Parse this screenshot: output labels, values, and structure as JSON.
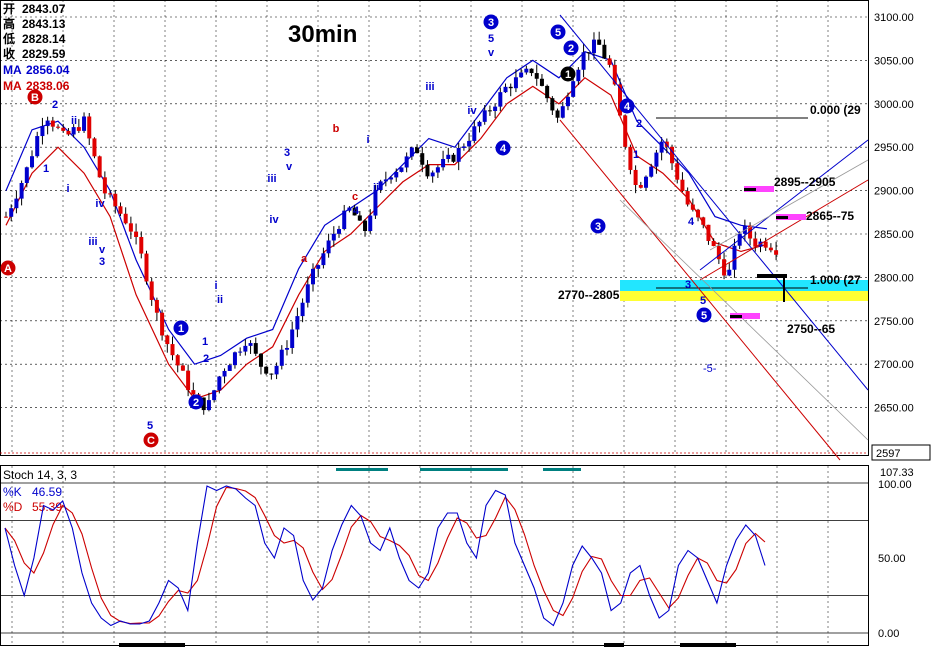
{
  "chart_data": [
    {
      "type": "candlestick",
      "title": "30min",
      "ohlc": {
        "labels": [
          "开",
          "高",
          "低",
          "收"
        ],
        "values": [
          "2843.07",
          "2843.13",
          "2828.14",
          "2829.59"
        ]
      },
      "ma": [
        {
          "name": "MA",
          "value": "2856.04",
          "color": "#0000cc"
        },
        {
          "name": "MA",
          "value": "2838.06",
          "color": "#cc0000"
        }
      ],
      "ylim": [
        2597,
        3115
      ],
      "y_ticks": [
        "3100.00",
        "3050.00",
        "3000.00",
        "2950.00",
        "2900.00",
        "2850.00",
        "2800.00",
        "2750.00",
        "2700.00",
        "2650.00"
      ],
      "last_value_label": "2597",
      "close_path": [
        [
          0,
          2870
        ],
        [
          6,
          2920
        ],
        [
          12,
          2990
        ],
        [
          18,
          2960
        ],
        [
          24,
          2980
        ],
        [
          30,
          2900
        ],
        [
          34,
          2880
        ],
        [
          38,
          2860
        ],
        [
          42,
          2820
        ],
        [
          46,
          2760
        ],
        [
          50,
          2720
        ],
        [
          54,
          2690
        ],
        [
          58,
          2660
        ],
        [
          62,
          2650
        ],
        [
          66,
          2690
        ],
        [
          70,
          2710
        ],
        [
          74,
          2730
        ],
        [
          78,
          2700
        ],
        [
          82,
          2690
        ],
        [
          86,
          2720
        ],
        [
          90,
          2760
        ],
        [
          94,
          2800
        ],
        [
          98,
          2830
        ],
        [
          102,
          2860
        ],
        [
          106,
          2880
        ],
        [
          110,
          2850
        ],
        [
          114,
          2900
        ],
        [
          118,
          2920
        ],
        [
          122,
          2930
        ],
        [
          126,
          2950
        ],
        [
          130,
          2920
        ],
        [
          134,
          2930
        ],
        [
          138,
          2940
        ],
        [
          142,
          2960
        ],
        [
          146,
          2980
        ],
        [
          150,
          3000
        ],
        [
          154,
          3020
        ],
        [
          158,
          3030
        ],
        [
          162,
          3040
        ],
        [
          166,
          3010
        ],
        [
          170,
          2980
        ],
        [
          174,
          3030
        ],
        [
          178,
          3060
        ],
        [
          182,
          3070
        ],
        [
          186,
          3040
        ],
        [
          190,
          2960
        ],
        [
          194,
          2900
        ],
        [
          198,
          2930
        ],
        [
          202,
          2960
        ],
        [
          206,
          2920
        ],
        [
          210,
          2880
        ],
        [
          214,
          2860
        ],
        [
          218,
          2830
        ],
        [
          222,
          2800
        ],
        [
          226,
          2860
        ],
        [
          230,
          2840
        ],
        [
          234,
          2840
        ],
        [
          238,
          2830
        ]
      ],
      "upper_ma": [
        [
          0,
          2900
        ],
        [
          8,
          2970
        ],
        [
          16,
          2980
        ],
        [
          24,
          2950
        ],
        [
          32,
          2900
        ],
        [
          40,
          2820
        ],
        [
          50,
          2740
        ],
        [
          58,
          2700
        ],
        [
          66,
          2710
        ],
        [
          74,
          2730
        ],
        [
          82,
          2740
        ],
        [
          90,
          2810
        ],
        [
          98,
          2860
        ],
        [
          106,
          2880
        ],
        [
          114,
          2900
        ],
        [
          122,
          2930
        ],
        [
          130,
          2960
        ],
        [
          138,
          2950
        ],
        [
          146,
          2990
        ],
        [
          154,
          3030
        ],
        [
          162,
          3050
        ],
        [
          170,
          3030
        ],
        [
          178,
          3060
        ],
        [
          186,
          3050
        ],
        [
          194,
          2980
        ],
        [
          202,
          2950
        ],
        [
          210,
          2920
        ],
        [
          218,
          2870
        ],
        [
          226,
          2860
        ],
        [
          234,
          2856
        ]
      ],
      "lower_ma": [
        [
          0,
          2860
        ],
        [
          8,
          2920
        ],
        [
          16,
          2950
        ],
        [
          24,
          2920
        ],
        [
          32,
          2870
        ],
        [
          40,
          2780
        ],
        [
          50,
          2700
        ],
        [
          58,
          2660
        ],
        [
          66,
          2670
        ],
        [
          74,
          2700
        ],
        [
          82,
          2720
        ],
        [
          90,
          2780
        ],
        [
          98,
          2830
        ],
        [
          106,
          2850
        ],
        [
          114,
          2880
        ],
        [
          122,
          2910
        ],
        [
          130,
          2930
        ],
        [
          138,
          2930
        ],
        [
          146,
          2960
        ],
        [
          154,
          3000
        ],
        [
          162,
          3020
        ],
        [
          170,
          3000
        ],
        [
          178,
          3030
        ],
        [
          186,
          3010
        ],
        [
          194,
          2940
        ],
        [
          202,
          2920
        ],
        [
          210,
          2890
        ],
        [
          218,
          2840
        ],
        [
          226,
          2830
        ],
        [
          234,
          2838
        ]
      ],
      "annotations": {
        "fib_0": "0.000 (29",
        "fib_1": "1.000 (27",
        "zone_2770": "2770--2805",
        "zone_2895": "2895--2905",
        "zone_2865": "2865--75",
        "zone_2750": "2750--65",
        "neg5": "-5-"
      },
      "wave_labels": [
        {
          "t": "A",
          "c": "#cc0000",
          "circle": true
        },
        {
          "t": "B",
          "c": "#cc0000",
          "circle": true
        },
        {
          "t": "C",
          "c": "#cc0000",
          "circle": true
        },
        {
          "t": "1",
          "c": "#0000cc",
          "circle": true
        },
        {
          "t": "2",
          "c": "#0000cc",
          "circle": true
        },
        {
          "t": "3",
          "c": "#0000cc",
          "circle": true
        },
        {
          "t": "4",
          "c": "#0000cc",
          "circle": true
        },
        {
          "t": "5",
          "c": "#0000cc",
          "circle": true
        }
      ]
    },
    {
      "type": "line",
      "title": "Stoch 14, 3, 3",
      "series": [
        {
          "name": "%K",
          "value": "46.59",
          "color": "#0000cc"
        },
        {
          "name": "%D",
          "value": "55.39",
          "color": "#cc0000"
        }
      ],
      "ylim": [
        0,
        107.33
      ],
      "y_ticks": [
        "107.33",
        "100.00",
        "50.00",
        "0.00"
      ],
      "k_values": [
        70,
        45,
        25,
        50,
        85,
        82,
        88,
        70,
        40,
        20,
        10,
        5,
        8,
        6,
        6,
        8,
        20,
        35,
        30,
        15,
        60,
        98,
        95,
        98,
        96,
        90,
        85,
        60,
        50,
        70,
        65,
        35,
        22,
        30,
        55,
        72,
        85,
        78,
        60,
        55,
        70,
        50,
        35,
        30,
        40,
        70,
        80,
        80,
        60,
        50,
        85,
        95,
        92,
        60,
        45,
        30,
        10,
        5,
        20,
        45,
        58,
        50,
        40,
        15,
        20,
        40,
        45,
        25,
        10,
        15,
        45,
        55,
        50,
        35,
        20,
        45,
        62,
        72,
        65,
        45
      ]
    }
  ]
}
